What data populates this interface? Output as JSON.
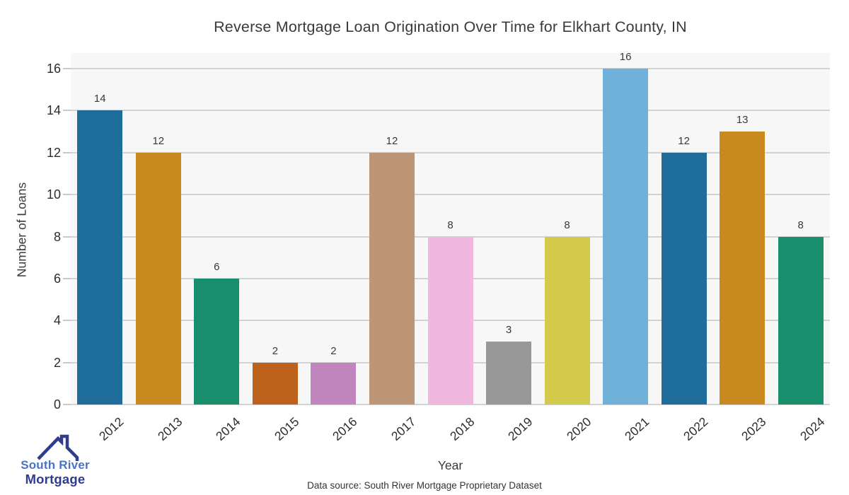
{
  "title": "Reverse Mortgage Loan Origination Over Time for Elkhart County, IN",
  "chart_data": {
    "type": "bar",
    "categories": [
      "2012",
      "2013",
      "2014",
      "2015",
      "2016",
      "2017",
      "2018",
      "2019",
      "2020",
      "2021",
      "2022",
      "2023",
      "2024"
    ],
    "values": [
      14,
      12,
      6,
      2,
      2,
      12,
      8,
      3,
      8,
      16,
      12,
      13,
      8
    ],
    "bar_colors": [
      "#1e6d9b",
      "#c8891e",
      "#188e6d",
      "#bd621c",
      "#c185bd",
      "#bd9678",
      "#f0b8de",
      "#989898",
      "#d3ca4b",
      "#6fb1d8",
      "#1e6d9b",
      "#c8891e",
      "#188e6d"
    ],
    "title": "Reverse Mortgage Loan Origination Over Time for Elkhart County, IN",
    "xlabel": "Year",
    "ylabel": "Number of Loans",
    "ylim": [
      0,
      16
    ],
    "yticks": [
      0,
      2,
      4,
      6,
      8,
      10,
      12,
      14,
      16
    ],
    "grid": "horizontal",
    "legend": "none",
    "value_labels_shown": true,
    "plot_background": "#f7f7f7",
    "gridline_color": "#d3d3d3"
  },
  "footer": {
    "data_source": "Data source: South River Mortgage Proprietary Dataset"
  },
  "logo": {
    "line1": "South River",
    "line2": "Mortgage",
    "line1_color": "#4a73c6",
    "line2_color": "#303c8c",
    "roof_color": "#303c8c"
  }
}
